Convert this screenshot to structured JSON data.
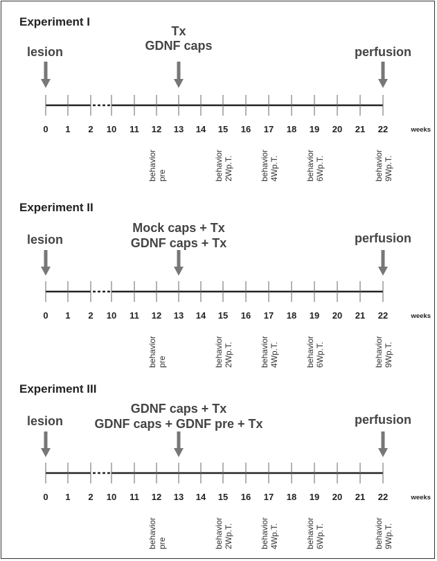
{
  "unit_label": "weeks",
  "tick_labels": [
    "0",
    "1",
    "2",
    "10",
    "11",
    "12",
    "13",
    "14",
    "15",
    "16",
    "17",
    "18",
    "19",
    "20",
    "21",
    "22"
  ],
  "experiments": [
    {
      "title": "Experiment I",
      "left_label": "lesion",
      "middle_labels": [
        "Tx",
        "GDNF caps"
      ],
      "right_label": "perfusion",
      "behavior": [
        {
          "week": "12",
          "lines": [
            "behavior",
            "pre"
          ]
        },
        {
          "week": "15",
          "lines": [
            "behavior",
            "2Wp.T."
          ]
        },
        {
          "week": "17",
          "lines": [
            "behavior",
            "4Wp.T."
          ]
        },
        {
          "week": "19",
          "lines": [
            "behavior",
            "6Wp.T."
          ]
        },
        {
          "week": "22",
          "lines": [
            "behavior",
            "9Wp.T."
          ]
        }
      ]
    },
    {
      "title": "Experiment II",
      "left_label": "lesion",
      "middle_labels": [
        "Mock caps + Tx",
        "GDNF caps + Tx"
      ],
      "right_label": "perfusion",
      "behavior": [
        {
          "week": "12",
          "lines": [
            "behavior",
            "pre"
          ]
        },
        {
          "week": "15",
          "lines": [
            "behavior",
            "2Wp.T."
          ]
        },
        {
          "week": "17",
          "lines": [
            "behavior",
            "4Wp.T."
          ]
        },
        {
          "week": "19",
          "lines": [
            "behavior",
            "6Wp.T."
          ]
        },
        {
          "week": "22",
          "lines": [
            "behavior",
            "9Wp.T."
          ]
        }
      ]
    },
    {
      "title": "Experiment III",
      "left_label": "lesion",
      "middle_labels": [
        "GDNF caps + Tx",
        "GDNF caps + GDNF pre + Tx"
      ],
      "right_label": "perfusion",
      "behavior": [
        {
          "week": "12",
          "lines": [
            "behavior",
            "pre"
          ]
        },
        {
          "week": "15",
          "lines": [
            "behavior",
            "2Wp.T."
          ]
        },
        {
          "week": "17",
          "lines": [
            "behavior",
            "4Wp.T."
          ]
        },
        {
          "week": "19",
          "lines": [
            "behavior",
            "6Wp.T."
          ]
        },
        {
          "week": "22",
          "lines": [
            "behavior",
            "9Wp.T."
          ]
        }
      ]
    }
  ]
}
